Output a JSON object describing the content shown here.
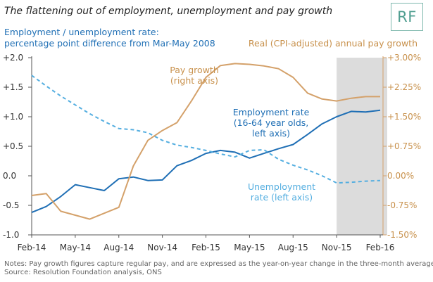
{
  "title": "The flattening out of employment, unemployment and pay growth",
  "logo": "RF",
  "left_axis_title_line1": "Employment / unemployment rate:",
  "left_axis_title_line2": "percentage point difference from Mar-May 2008",
  "right_axis_title": "Real (CPI-adjusted) annual pay growth",
  "notes_line1": "Notes: Pay growth figures capture regular pay, and are expressed as the year-on-year change in the three-month average",
  "notes_line2": "Source: Resolution Foundation analysis, ONS",
  "colors": {
    "employment": "#1f6fb5",
    "unemployment": "#54aee0",
    "pay": "#d4a16a",
    "shade": "#dcdcdc"
  },
  "chart_data": {
    "type": "line",
    "x": [
      "Feb-14",
      "Mar-14",
      "Apr-14",
      "May-14",
      "Jun-14",
      "Jul-14",
      "Aug-14",
      "Sep-14",
      "Oct-14",
      "Nov-14",
      "Dec-14",
      "Jan-15",
      "Feb-15",
      "Mar-15",
      "Apr-15",
      "May-15",
      "Jun-15",
      "Jul-15",
      "Aug-15",
      "Sep-15",
      "Oct-15",
      "Nov-15",
      "Dec-15",
      "Jan-16",
      "Feb-16"
    ],
    "x_tick_labels": [
      "Feb-14",
      "May-14",
      "Aug-14",
      "Nov-14",
      "Feb-15",
      "May-15",
      "Aug-15",
      "Nov-15",
      "Feb-16"
    ],
    "shaded_region": [
      "Nov-15",
      "Feb-16"
    ],
    "y_left": {
      "lim": [
        -1.0,
        2.0
      ],
      "tick_labels": [
        "-1.0",
        "-0.5",
        "0.0",
        "+0.5",
        "+1.0",
        "+1.5",
        "+2.0"
      ]
    },
    "y_right": {
      "lim": [
        -1.5,
        3.0
      ],
      "tick_labels": [
        "-1.50%",
        "-0.75%",
        "0.00%",
        "+0.75%",
        "+1.50%",
        "+2.25%",
        "+3.00%"
      ]
    },
    "series": [
      {
        "name": "Employment rate",
        "axis": "left",
        "style": "solid",
        "values": [
          -0.62,
          -0.52,
          -0.35,
          -0.15,
          -0.2,
          -0.25,
          -0.05,
          -0.02,
          -0.08,
          -0.07,
          0.17,
          0.26,
          0.38,
          0.43,
          0.4,
          0.3,
          0.38,
          0.46,
          0.53,
          0.7,
          0.88,
          1.0,
          1.09,
          1.08,
          1.11
        ]
      },
      {
        "name": "Unemployment rate",
        "axis": "left",
        "style": "dashed",
        "values": [
          1.7,
          1.52,
          1.35,
          1.2,
          1.05,
          0.92,
          0.8,
          0.78,
          0.73,
          0.6,
          0.52,
          0.48,
          0.43,
          0.37,
          0.32,
          0.43,
          0.44,
          0.28,
          0.18,
          0.1,
          0.0,
          -0.12,
          -0.11,
          -0.09,
          -0.08
        ]
      },
      {
        "name": "Pay growth",
        "axis": "right",
        "style": "solid",
        "values": [
          -0.5,
          -0.45,
          -0.9,
          -1.0,
          -1.1,
          -0.95,
          -0.8,
          0.25,
          0.9,
          1.15,
          1.35,
          1.9,
          2.5,
          2.8,
          2.85,
          2.83,
          2.79,
          2.72,
          2.5,
          2.1,
          1.95,
          1.9,
          1.97,
          2.01,
          2.01
        ]
      }
    ],
    "annotations": [
      {
        "text_lines": [
          "Pay growth",
          "(right axis)"
        ],
        "series": "Pay growth"
      },
      {
        "text_lines": [
          "Employment rate",
          "(16-64 year olds,",
          "left axis)"
        ],
        "series": "Employment rate"
      },
      {
        "text_lines": [
          "Unemployment",
          "rate (left axis)"
        ],
        "series": "Unemployment rate"
      }
    ]
  }
}
